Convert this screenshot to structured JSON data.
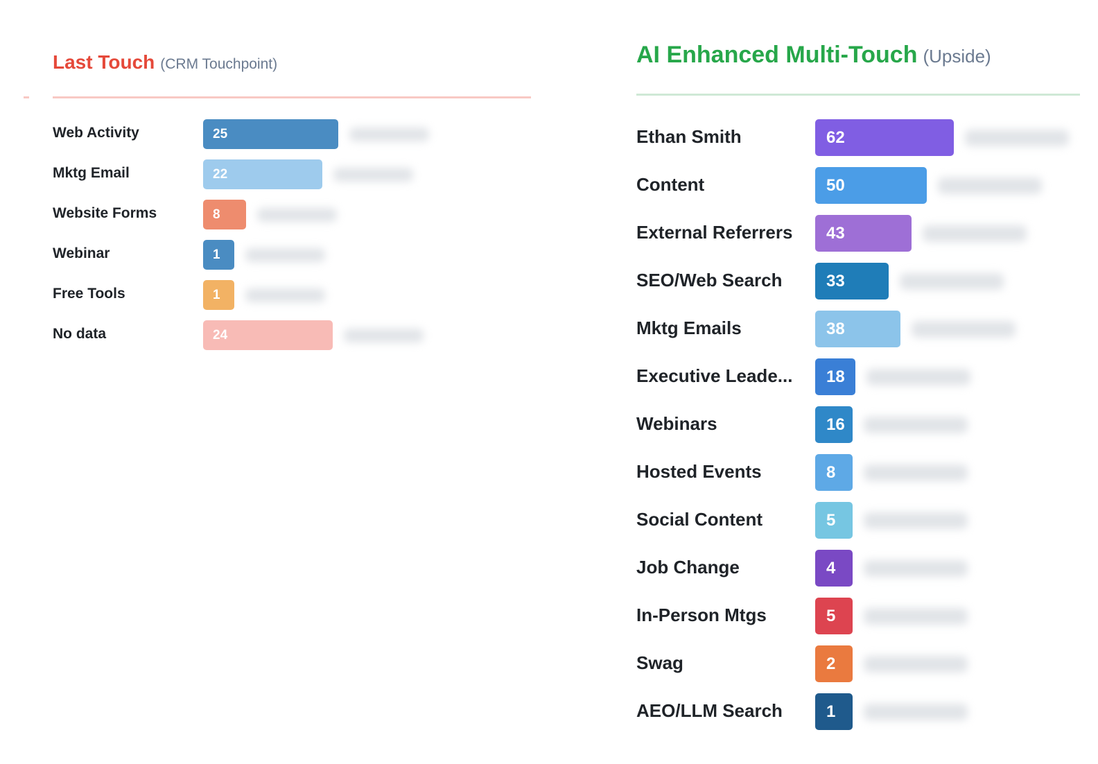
{
  "chart_data": [
    {
      "type": "bar",
      "orientation": "horizontal",
      "title": "Last Touch",
      "subtitle": "(CRM Touchpoint)",
      "title_color": "#e5493a",
      "rule_color": "#f8c9c4",
      "categories": [
        "Web Activity",
        "Mktg Email",
        "Website Forms",
        "Webinar",
        "Free Tools",
        "No data"
      ],
      "values": [
        25,
        22,
        8,
        1,
        1,
        24
      ],
      "colors": [
        "#4a8cc2",
        "#9ecbed",
        "#ee8c6e",
        "#4a8cc2",
        "#f2b264",
        "#f8bbb6"
      ],
      "xlim": [
        0,
        25
      ],
      "grid": false
    },
    {
      "type": "bar",
      "orientation": "horizontal",
      "title": "AI Enhanced Multi-Touch",
      "subtitle": "(Upside)",
      "title_color": "#27a74a",
      "rule_color": "#cfe9d6",
      "categories": [
        "Ethan Smith",
        "Content",
        "External Referrers",
        "SEO/Web Search",
        "Mktg Emails",
        "Executive Leade...",
        "Webinars",
        "Hosted Events",
        "Social Content",
        "Job Change",
        "In-Person Mtgs",
        "Swag",
        "AEO/LLM Search"
      ],
      "values": [
        62,
        50,
        43,
        33,
        38,
        18,
        16,
        8,
        5,
        4,
        5,
        2,
        1
      ],
      "colors": [
        "#805ee3",
        "#4b9de7",
        "#9e6fd6",
        "#1f7db8",
        "#8cc4ea",
        "#3a7fd6",
        "#2f88c8",
        "#5ea9e6",
        "#76c6e2",
        "#7a49c4",
        "#dd4450",
        "#ea7a3f",
        "#1f5a8c"
      ],
      "xlim": [
        0,
        62
      ],
      "grid": false
    }
  ]
}
